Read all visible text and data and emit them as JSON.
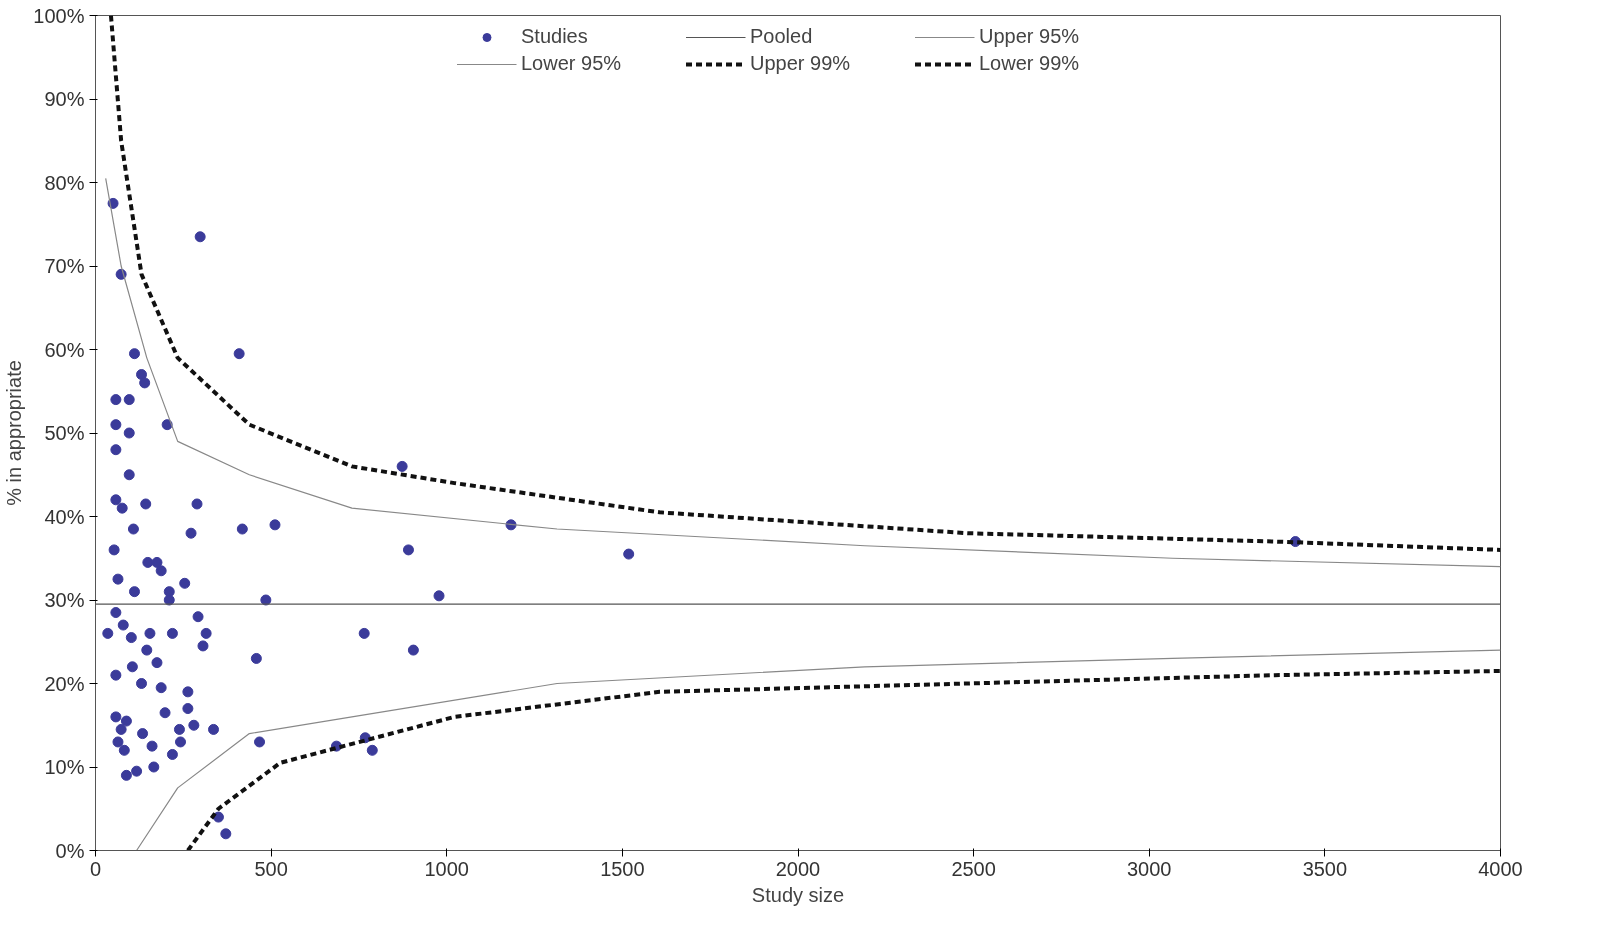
{
  "chart_data": {
    "type": "scatter",
    "xlabel": "Study size",
    "ylabel": "% in appropriate",
    "xlim": [
      0,
      4000
    ],
    "xticks": [
      0,
      500,
      1000,
      1500,
      2000,
      2500,
      3000,
      3500,
      4000
    ],
    "ylim": [
      0,
      100
    ],
    "yticks": [
      {
        "value": 0,
        "label": "0%"
      },
      {
        "value": 10,
        "label": "10%"
      },
      {
        "value": 20,
        "label": "20%"
      },
      {
        "value": 30,
        "label": "30%"
      },
      {
        "value": 40,
        "label": "40%"
      },
      {
        "value": 50,
        "label": "50%"
      },
      {
        "value": 60,
        "label": "60%"
      },
      {
        "value": 70,
        "label": "70%"
      },
      {
        "value": 80,
        "label": "80%"
      },
      {
        "value": 90,
        "label": "90%"
      },
      {
        "value": 100,
        "label": "100%"
      }
    ],
    "grid": false,
    "legend": "top",
    "series": [
      {
        "name": "Studies",
        "marker": "circle",
        "color": "#3b3b9a",
        "x": [
          50,
          73,
          298,
          111,
          131,
          140,
          58,
          96,
          58,
          96,
          204,
          409,
          58,
          96,
          58,
          76,
          143,
          108,
          289,
          272,
          53,
          64,
          149,
          175,
          187,
          111,
          210,
          254,
          418,
          511,
          485,
          873,
          891,
          978,
          1183,
          1518,
          3416,
          35,
          58,
          79,
          102,
          146,
          219,
          292,
          315,
          306,
          58,
          105,
          175,
          187,
          131,
          58,
          88,
          73,
          64,
          82,
          134,
          198,
          263,
          280,
          161,
          239,
          336,
          219,
          88,
          117,
          166,
          350,
          371,
          467,
          768,
          788,
          686,
          765,
          905,
          458,
          242,
          263,
          155,
          210
        ],
        "values": [
          77.5,
          69,
          73.5,
          59.5,
          57,
          56,
          54,
          54,
          51,
          50,
          51,
          59.5,
          48,
          45,
          42,
          41,
          41.5,
          38.5,
          41.5,
          38,
          36,
          32.5,
          34.5,
          34.5,
          33.5,
          31,
          31,
          32,
          38.5,
          39,
          30,
          46,
          36,
          30.5,
          39,
          35.5,
          37,
          26,
          28.5,
          27,
          25.5,
          24,
          26,
          28,
          26,
          24.5,
          21,
          22,
          22.5,
          19.5,
          20,
          16,
          15.5,
          14.5,
          13,
          12,
          14,
          16.5,
          17,
          15,
          12.5,
          14.5,
          14.5,
          11.5,
          9,
          9.5,
          10,
          4,
          2,
          13,
          13.5,
          12,
          12.5,
          26,
          24,
          23,
          13,
          19,
          26,
          30
        ]
      },
      {
        "name": "Pooled",
        "type": "line",
        "color": "#555555",
        "line_style": "solid",
        "x": [
          0,
          4000
        ],
        "values": [
          29.5,
          29.5
        ]
      },
      {
        "name": "Upper 95%",
        "type": "line",
        "color": "#888888",
        "line_style": "solid",
        "x": [
          29,
          73,
          146,
          234,
          438,
          730,
          1314,
          2190,
          3066,
          4000
        ],
        "values": [
          80.5,
          70,
          59,
          49,
          45,
          41,
          38.5,
          36.5,
          35,
          34
        ]
      },
      {
        "name": "Lower 95%",
        "type": "line",
        "color": "#888888",
        "line_style": "solid",
        "x": [
          117,
          234,
          438,
          730,
          1314,
          2190,
          3066,
          4000
        ],
        "values": [
          0,
          7.5,
          14,
          16,
          20,
          22,
          23,
          24
        ]
      },
      {
        "name": "Upper 99%",
        "type": "line",
        "color": "#111111",
        "line_style": "dashed",
        "x": [
          44,
          73,
          131,
          234,
          438,
          730,
          1022,
          1606,
          2482,
          3358,
          4000
        ],
        "values": [
          100,
          85,
          69,
          59,
          51,
          46,
          44,
          40.5,
          38,
          37,
          36
        ]
      },
      {
        "name": "Lower 99%",
        "type": "line",
        "color": "#111111",
        "line_style": "dashed",
        "x": [
          263,
          350,
          526,
          1022,
          1606,
          2482,
          3358,
          4000
        ],
        "values": [
          0,
          5,
          10.5,
          16,
          19,
          20,
          21,
          21.5
        ]
      }
    ]
  }
}
